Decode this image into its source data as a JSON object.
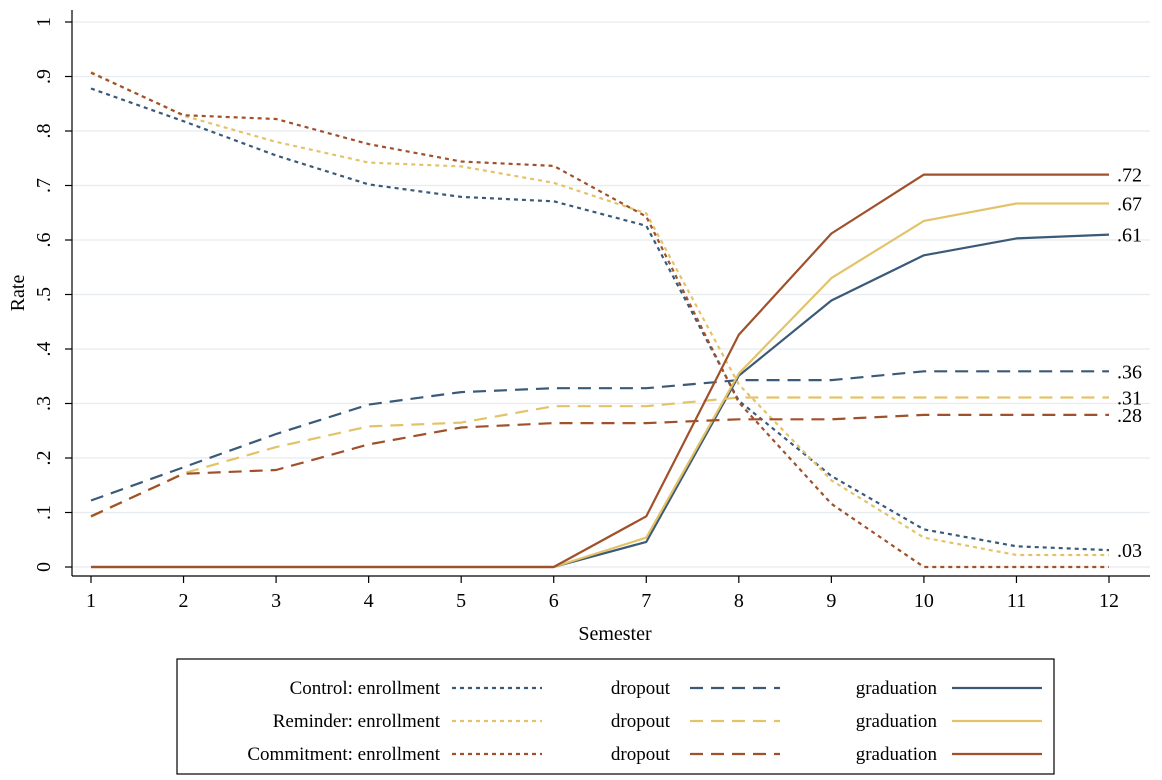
{
  "chart_data": {
    "type": "line",
    "xlabel": "Semester",
    "ylabel": "Rate",
    "x": [
      1,
      2,
      3,
      4,
      5,
      6,
      7,
      8,
      9,
      10,
      11,
      12
    ],
    "xlim": [
      1,
      12
    ],
    "ylim": [
      0,
      1
    ],
    "x_ticks": [
      "1",
      "2",
      "3",
      "4",
      "5",
      "6",
      "7",
      "8",
      "9",
      "10",
      "11",
      "12"
    ],
    "y_ticks": [
      {
        "value": 0,
        "label": "0"
      },
      {
        "value": 0.1,
        "label": ".1"
      },
      {
        "value": 0.2,
        "label": ".2"
      },
      {
        "value": 0.3,
        "label": ".3"
      },
      {
        "value": 0.4,
        "label": ".4"
      },
      {
        "value": 0.5,
        "label": ".5"
      },
      {
        "value": 0.6,
        "label": ".6"
      },
      {
        "value": 0.7,
        "label": ".7"
      },
      {
        "value": 0.8,
        "label": ".8"
      },
      {
        "value": 0.9,
        "label": ".9"
      },
      {
        "value": 1,
        "label": "1"
      }
    ],
    "grid": true,
    "legend_position": "bottom",
    "legend_rows": [
      {
        "group": "Control: enrollment",
        "dropout": "dropout",
        "graduation": "graduation",
        "color": "#3b5a78"
      },
      {
        "group": "Reminder: enrollment",
        "dropout": "dropout",
        "graduation": "graduation",
        "color": "#e3c36a"
      },
      {
        "group": "Commitment: enrollment",
        "dropout": "dropout",
        "graduation": "graduation",
        "color": "#a0512b"
      }
    ],
    "series": [
      {
        "group": "Control",
        "measure": "enrollment",
        "style": "dotted",
        "color": "#3b5a78",
        "values": [
          0.878,
          0.818,
          0.755,
          0.702,
          0.679,
          0.671,
          0.626,
          0.305,
          0.167,
          0.069,
          0.038,
          0.031
        ]
      },
      {
        "group": "Control",
        "measure": "dropout",
        "style": "dashed",
        "color": "#3b5a78",
        "values": [
          0.122,
          0.183,
          0.244,
          0.298,
          0.321,
          0.328,
          0.328,
          0.343,
          0.343,
          0.359,
          0.359,
          0.359
        ]
      },
      {
        "group": "Control",
        "measure": "graduation",
        "style": "solid",
        "color": "#3b5a78",
        "values": [
          0,
          0,
          0,
          0,
          0,
          0,
          0.046,
          0.351,
          0.489,
          0.572,
          0.603,
          0.61
        ]
      },
      {
        "group": "Reminder",
        "measure": "enrollment",
        "style": "dotted",
        "color": "#e3c36a",
        "values": [
          0.908,
          0.828,
          0.78,
          0.742,
          0.735,
          0.705,
          0.649,
          0.335,
          0.159,
          0.054,
          0.022,
          0.022
        ]
      },
      {
        "group": "Reminder",
        "measure": "dropout",
        "style": "dashed",
        "color": "#e3c36a",
        "values": [
          0.092,
          0.172,
          0.22,
          0.258,
          0.265,
          0.295,
          0.295,
          0.311,
          0.311,
          0.311,
          0.311,
          0.311
        ]
      },
      {
        "group": "Reminder",
        "measure": "graduation",
        "style": "solid",
        "color": "#e3c36a",
        "values": [
          0,
          0,
          0,
          0,
          0,
          0,
          0.054,
          0.355,
          0.53,
          0.635,
          0.667,
          0.667
        ]
      },
      {
        "group": "Commitment",
        "measure": "enrollment",
        "style": "dotted",
        "color": "#a0512b",
        "values": [
          0.907,
          0.829,
          0.822,
          0.776,
          0.744,
          0.736,
          0.643,
          0.302,
          0.116,
          0,
          0,
          0
        ]
      },
      {
        "group": "Commitment",
        "measure": "dropout",
        "style": "dashed",
        "color": "#a0512b",
        "values": [
          0.093,
          0.171,
          0.178,
          0.225,
          0.256,
          0.264,
          0.264,
          0.271,
          0.271,
          0.279,
          0.279,
          0.279
        ]
      },
      {
        "group": "Commitment",
        "measure": "graduation",
        "style": "solid",
        "color": "#a0512b",
        "values": [
          0,
          0,
          0,
          0,
          0,
          0,
          0.093,
          0.426,
          0.612,
          0.72,
          0.72,
          0.72
        ]
      }
    ],
    "end_labels": [
      {
        "value": 0.72,
        "label": ".72"
      },
      {
        "value": 0.667,
        "label": ".67"
      },
      {
        "value": 0.61,
        "label": ".61"
      },
      {
        "value": 0.359,
        "label": ".36"
      },
      {
        "value": 0.311,
        "label": ".31"
      },
      {
        "value": 0.279,
        "label": ".28"
      },
      {
        "value": 0.031,
        "label": ".03"
      }
    ]
  }
}
